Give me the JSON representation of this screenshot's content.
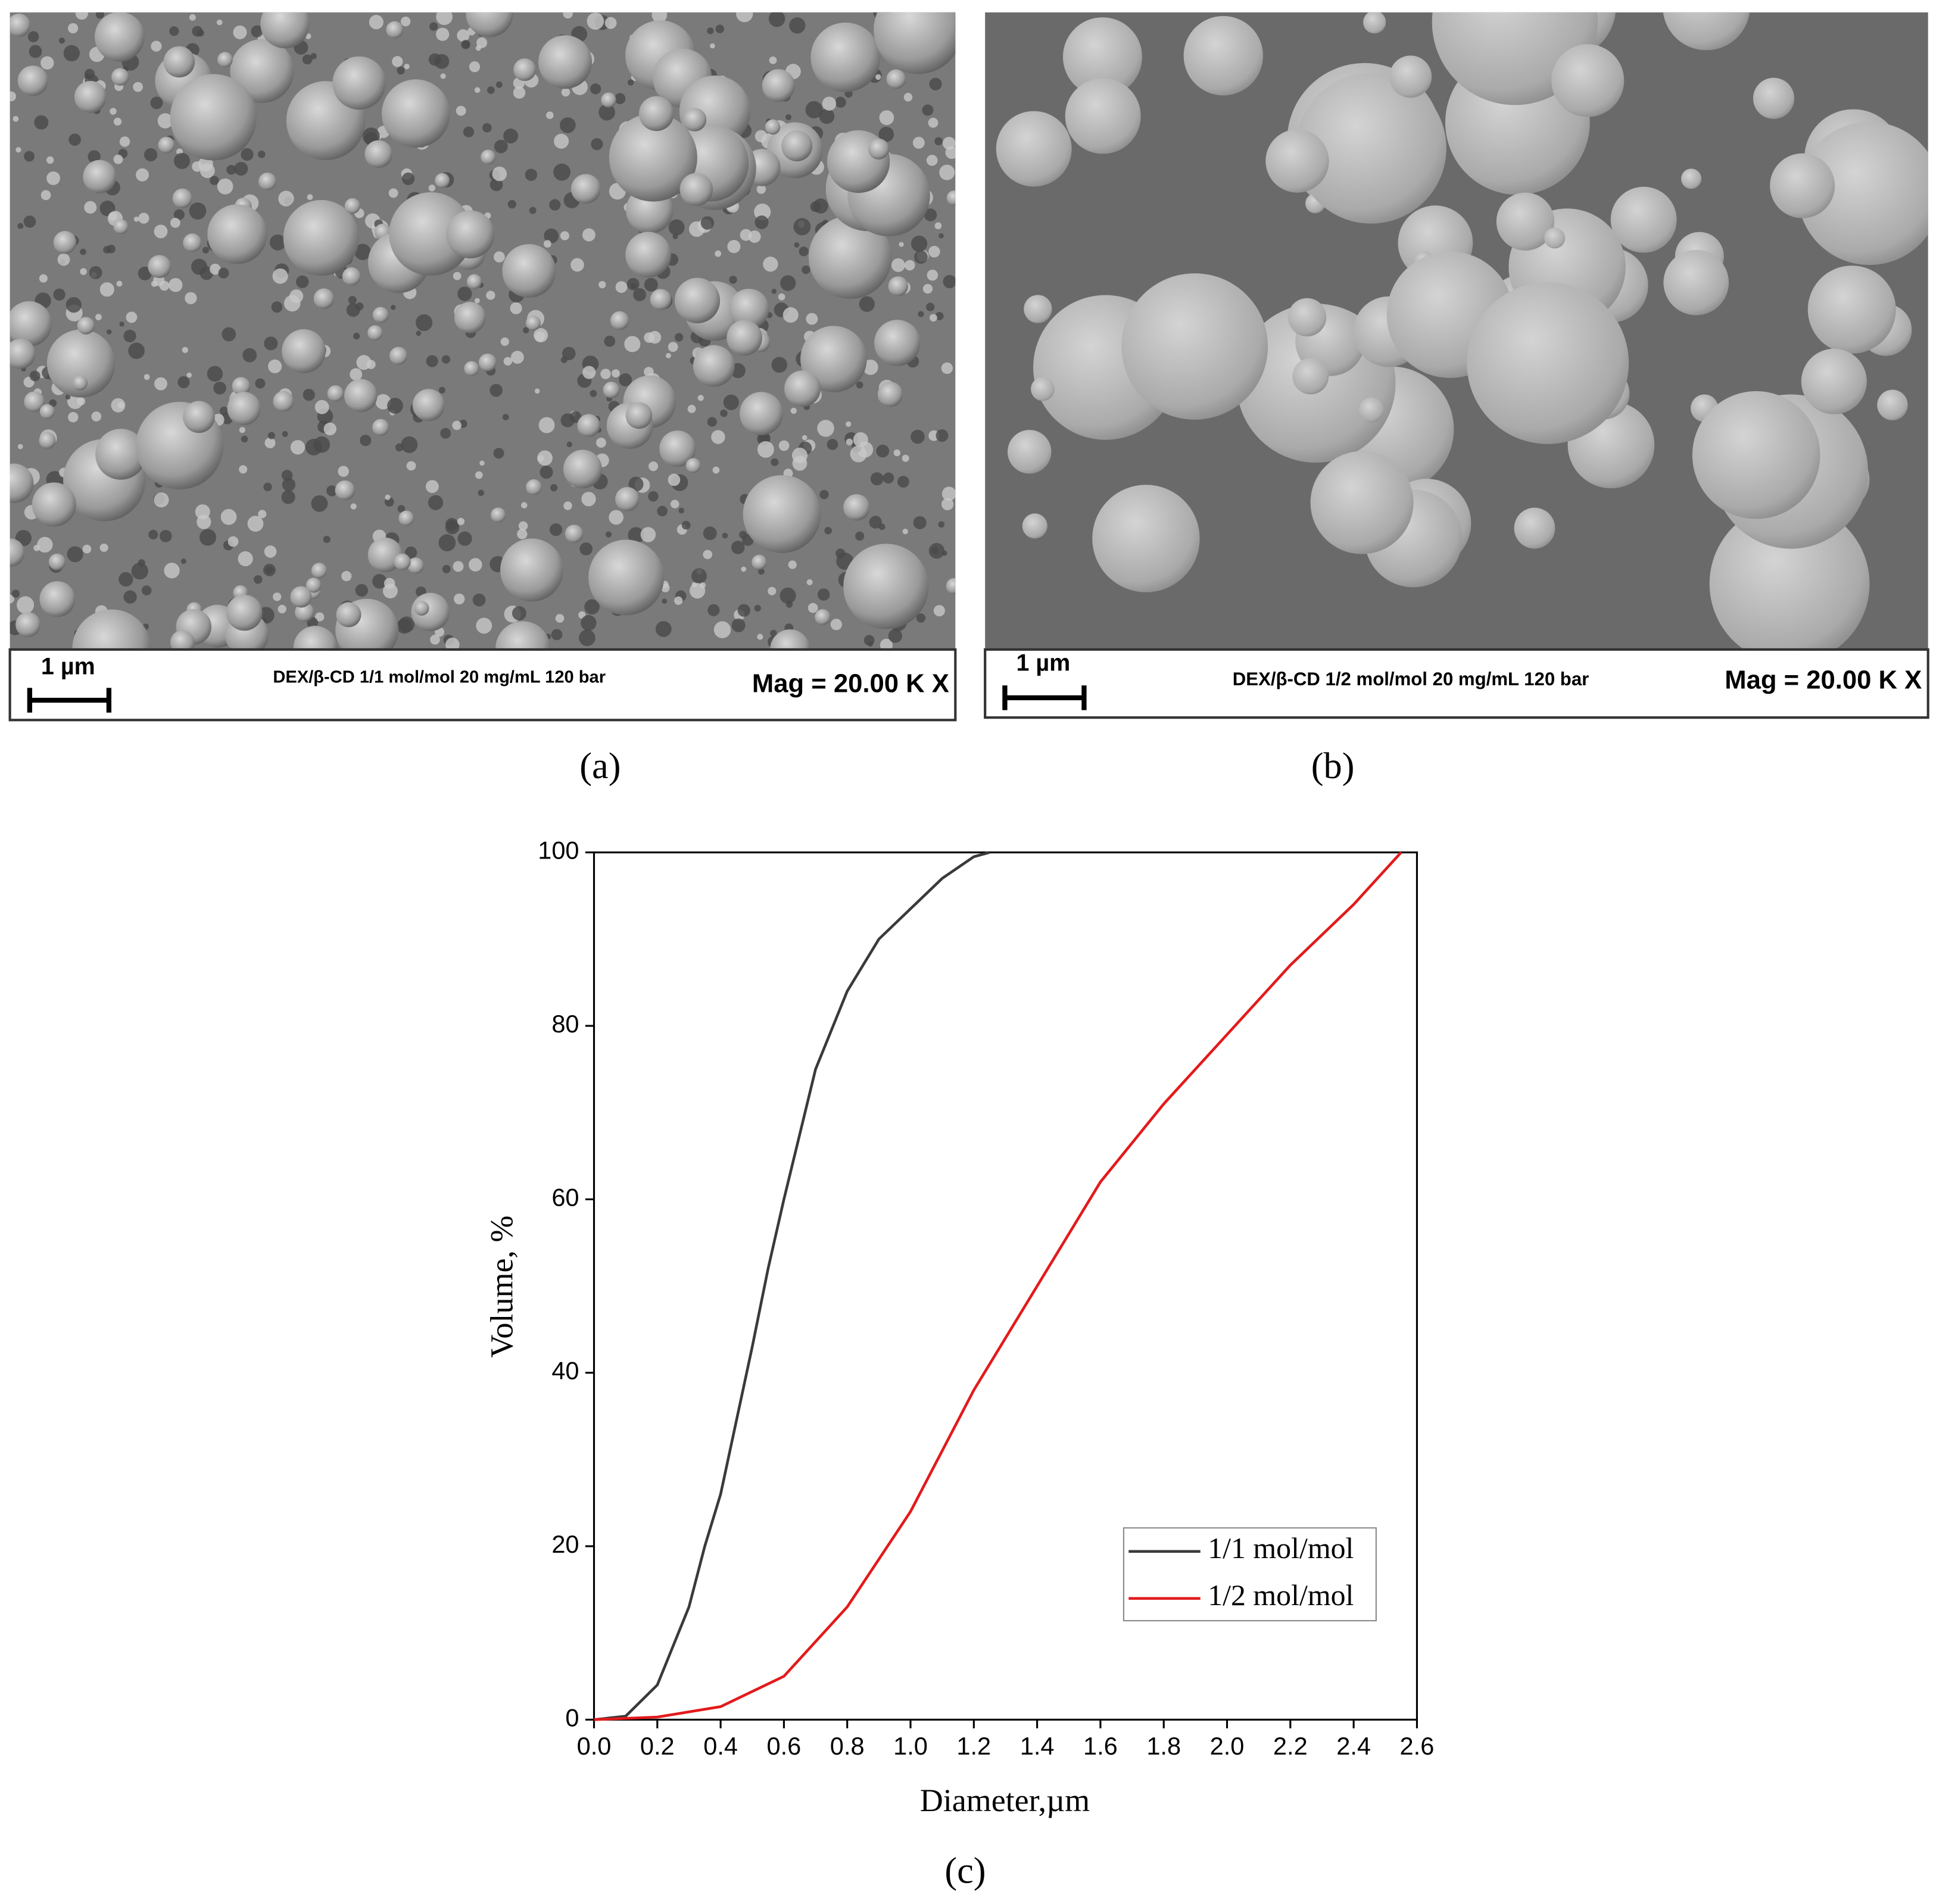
{
  "panels": [
    {
      "label": "(a)",
      "scale": "1 µm",
      "caption": "DEX/β-CD 1/1 mol/mol 20 mg/mL 120 bar",
      "magnification": "Mag =  20.00 K X"
    },
    {
      "label": "(b)",
      "scale": "1 µm",
      "caption": "DEX/β-CD 1/2 mol/mol 20 mg/mL 120 bar",
      "magnification": "Mag =  20.00 K X"
    }
  ],
  "chart_label": "(c)",
  "chart_data": {
    "type": "line",
    "x_label": "Diameter,µm",
    "y_label": "Volume, %",
    "xlim": [
      0,
      2.6
    ],
    "ylim": [
      0,
      100
    ],
    "xticks": [
      {
        "value": 0,
        "label": "0.0"
      },
      0.2,
      0.4,
      0.6,
      0.8,
      {
        "value": 1,
        "label": "1.0"
      },
      1.2,
      1.4,
      1.6,
      1.8,
      {
        "value": 2,
        "label": "2.0"
      },
      2.2,
      2.4,
      2.6
    ],
    "yticks": [
      0,
      20,
      40,
      60,
      80,
      100
    ],
    "legend": "lower right",
    "series": [
      {
        "name": "1/1 mol/mol",
        "color": "#3a3a3a",
        "x": [
          0,
          0.1,
          0.2,
          0.3,
          0.35,
          0.4,
          0.5,
          0.55,
          0.6,
          0.7,
          0.8,
          0.9,
          1.0,
          1.1,
          1.2,
          1.25
        ],
        "values": [
          0,
          0.4,
          4,
          13,
          20,
          26,
          43,
          52,
          60,
          75,
          84,
          90,
          93.5,
          97,
          99.5,
          100
        ]
      },
      {
        "name": "1/2 mol/mol",
        "color": "#e31a1c",
        "x": [
          0,
          0.2,
          0.4,
          0.6,
          0.8,
          1.0,
          1.2,
          1.4,
          1.6,
          1.8,
          2.0,
          2.2,
          2.4,
          2.55
        ],
        "values": [
          0,
          0.3,
          1.5,
          5,
          13,
          24,
          38,
          50,
          62,
          71,
          79,
          87,
          94,
          100
        ]
      }
    ]
  }
}
